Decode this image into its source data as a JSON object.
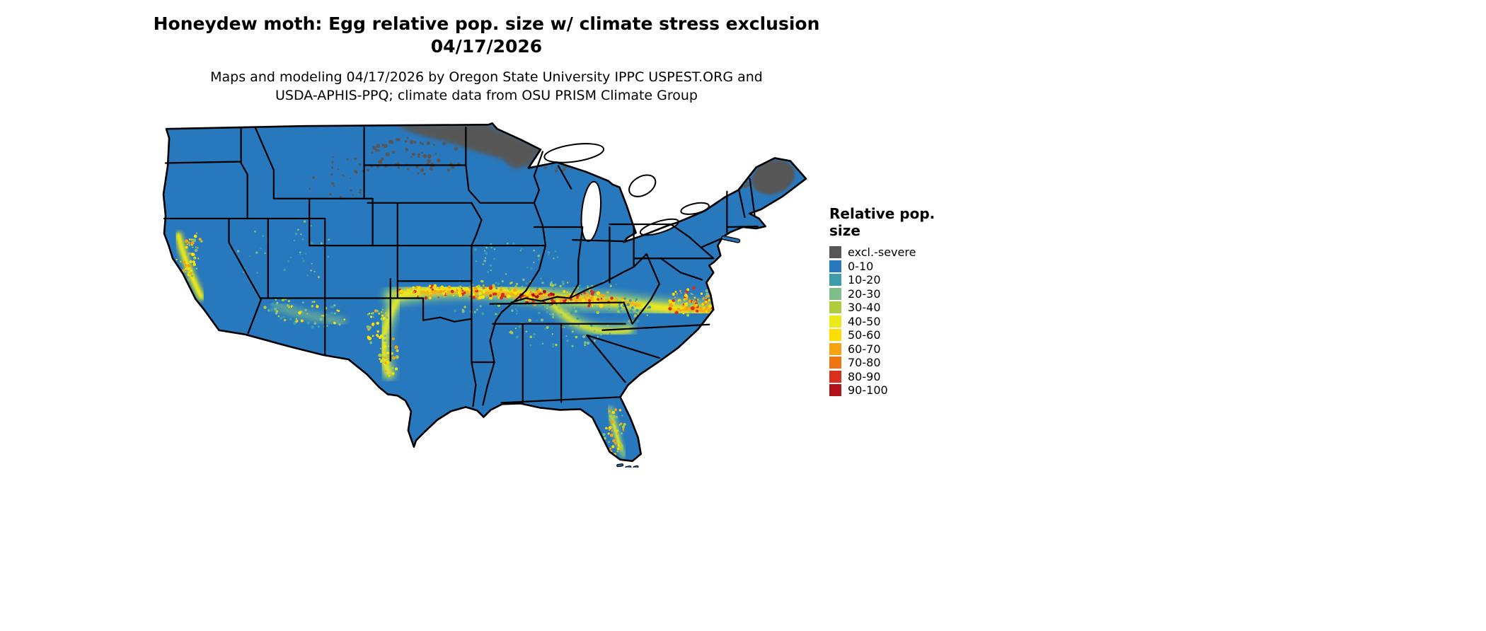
{
  "header": {
    "title_line1": "Honeydew moth: Egg relative pop. size w/ climate stress exclusion",
    "title_line2": "04/17/2026",
    "subtitle_line1": "Maps and modeling 04/17/2026 by Oregon State University IPPC USPEST.ORG and",
    "subtitle_line2": "USDA-APHIS-PPQ; climate data from OSU PRISM Climate Group"
  },
  "map": {
    "region": "Contiguous United States",
    "kind": "raster choropleth of relative population size with climate stress exclusion",
    "base_color": "#2878BE",
    "boundary_color": "#000000",
    "background_color": "#ffffff"
  },
  "legend": {
    "title": "Relative pop. size",
    "items": [
      {
        "label": "excl.-severe",
        "color": "#575757"
      },
      {
        "label": "0-10",
        "color": "#2878BE"
      },
      {
        "label": "10-20",
        "color": "#3E9BA8"
      },
      {
        "label": "20-30",
        "color": "#7FBE89"
      },
      {
        "label": "30-40",
        "color": "#AFCC3F"
      },
      {
        "label": "40-50",
        "color": "#ECE81A"
      },
      {
        "label": "50-60",
        "color": "#FFDD00"
      },
      {
        "label": "60-70",
        "color": "#F6A312"
      },
      {
        "label": "70-80",
        "color": "#EE7612"
      },
      {
        "label": "80-90",
        "color": "#D7301F"
      },
      {
        "label": "90-100",
        "color": "#B1121B"
      }
    ]
  }
}
